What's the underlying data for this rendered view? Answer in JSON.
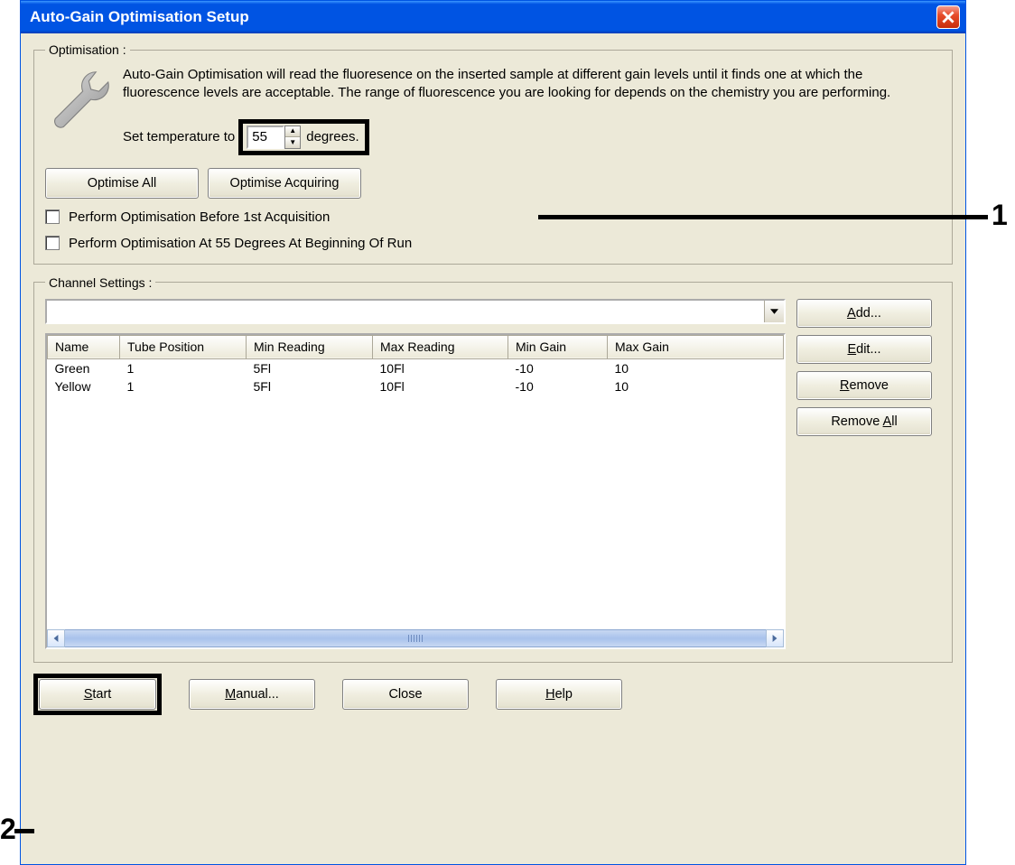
{
  "window": {
    "title": "Auto-Gain Optimisation Setup"
  },
  "optimisation": {
    "legend": "Optimisation :",
    "description": "Auto-Gain Optimisation will read the fluoresence on the inserted sample at different gain levels until it finds one at which the fluorescence levels are acceptable. The range of fluorescence you are looking for depends on the chemistry you are performing.",
    "temp_label_before": "Set temperature to",
    "temp_value": "55",
    "temp_label_after": "degrees.",
    "optimise_all": "Optimise All",
    "optimise_acquiring": "Optimise Acquiring",
    "check1": "Perform Optimisation Before 1st Acquisition",
    "check2": "Perform Optimisation At 55 Degrees At Beginning Of Run"
  },
  "channel": {
    "legend": "Channel Settings :",
    "combo_value": "",
    "headers": {
      "name": "Name",
      "tube": "Tube Position",
      "minr": "Min Reading",
      "maxr": "Max Reading",
      "ming": "Min Gain",
      "maxg": "Max Gain"
    },
    "rows": [
      {
        "name": "Green",
        "tube": "1",
        "minr": "5Fl",
        "maxr": "10Fl",
        "ming": "-10",
        "maxg": "10"
      },
      {
        "name": "Yellow",
        "tube": "1",
        "minr": "5Fl",
        "maxr": "10Fl",
        "ming": "-10",
        "maxg": "10"
      }
    ],
    "add": "Add...",
    "edit": "Edit...",
    "remove": "Remove",
    "remove_all": "Remove All",
    "add_u": "A",
    "edit_u": "E",
    "remove_u": "R",
    "remove_all_u": "A"
  },
  "buttons": {
    "start": "Start",
    "start_u": "S",
    "manual": "Manual...",
    "manual_u": "M",
    "close": "Close",
    "help": "Help",
    "help_u": "H"
  },
  "annotations": {
    "one": "1",
    "two": "2"
  },
  "colors": {
    "titlebar_blue": "#0054e3",
    "face": "#ece9d8",
    "border": "#aca899",
    "highlight": "#000000",
    "close_red": "#e74c2b"
  }
}
